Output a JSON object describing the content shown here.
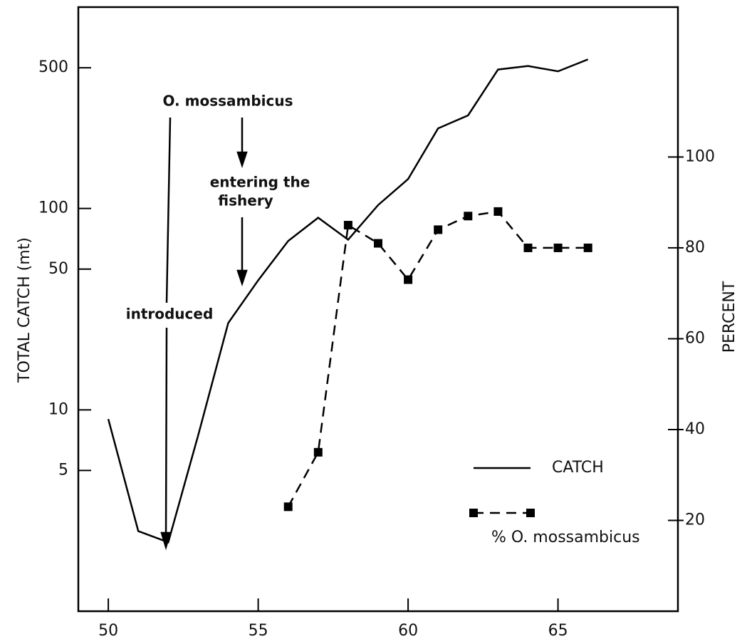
{
  "chart_data": {
    "type": "line",
    "x": [
      50,
      51,
      52,
      53,
      54,
      55,
      56,
      57,
      58,
      59,
      60,
      61,
      62,
      63,
      64,
      65,
      66
    ],
    "xlim": [
      49,
      69
    ],
    "xticks": [
      50,
      55,
      60,
      65
    ],
    "ylim": [
      1,
      1000
    ],
    "yscale": "log",
    "yticks": [
      5,
      10,
      50,
      100,
      500
    ],
    "y2lim": [
      0,
      133
    ],
    "y2ticks": [
      20,
      40,
      60,
      80,
      100
    ],
    "ylabel": "TOTAL CATCH  (mt)",
    "y2label": "PERCENT",
    "legend": "lower right",
    "series": [
      {
        "name": "CATCH",
        "color": "#000000",
        "style": "solid",
        "values": [
          9,
          2.5,
          2.2,
          7.5,
          27,
          44,
          69,
          90,
          70,
          104,
          140,
          250,
          290,
          490,
          510,
          480,
          550
        ]
      },
      {
        "name": "% O. mossambicus",
        "color": "#000000",
        "style": "dashed",
        "axis": "y2",
        "values": [
          null,
          null,
          null,
          null,
          null,
          null,
          23,
          35,
          85,
          81,
          73,
          84,
          87,
          88,
          80,
          80,
          80
        ]
      }
    ],
    "annotations": [
      "O. mossambicus",
      "entering the",
      "fishery",
      "introduced"
    ]
  }
}
